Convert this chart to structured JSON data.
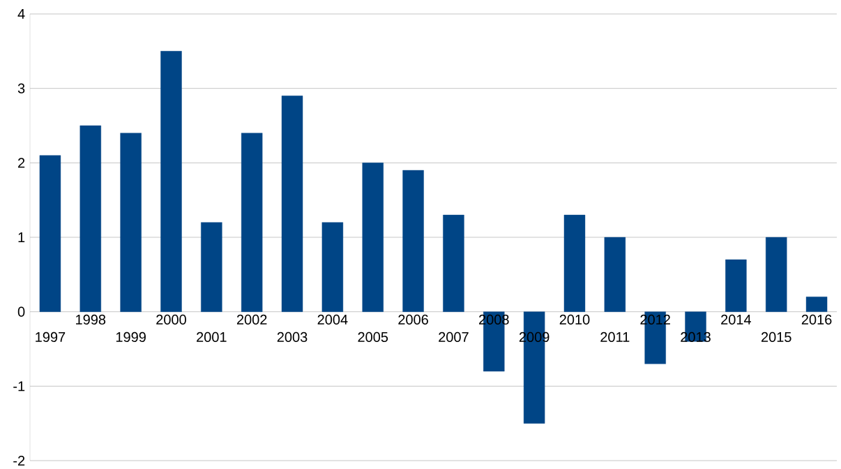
{
  "chart_data": {
    "type": "bar",
    "categories": [
      "1997",
      "1998",
      "1999",
      "2000",
      "2001",
      "2002",
      "2003",
      "2004",
      "2005",
      "2006",
      "2007",
      "2008",
      "2009",
      "2010",
      "2011",
      "2012",
      "2013",
      "2014",
      "2015",
      "2016"
    ],
    "values": [
      2.1,
      2.5,
      2.4,
      3.5,
      1.2,
      2.4,
      2.9,
      1.2,
      2.0,
      1.9,
      1.3,
      -0.8,
      -1.5,
      1.3,
      1.0,
      -0.7,
      -0.4,
      0.7,
      1.0,
      0.2
    ],
    "color": "#004586",
    "ylim": [
      -2,
      4
    ],
    "yticks": [
      -2,
      -1,
      0,
      1,
      2,
      3,
      4
    ],
    "grid": "y"
  }
}
